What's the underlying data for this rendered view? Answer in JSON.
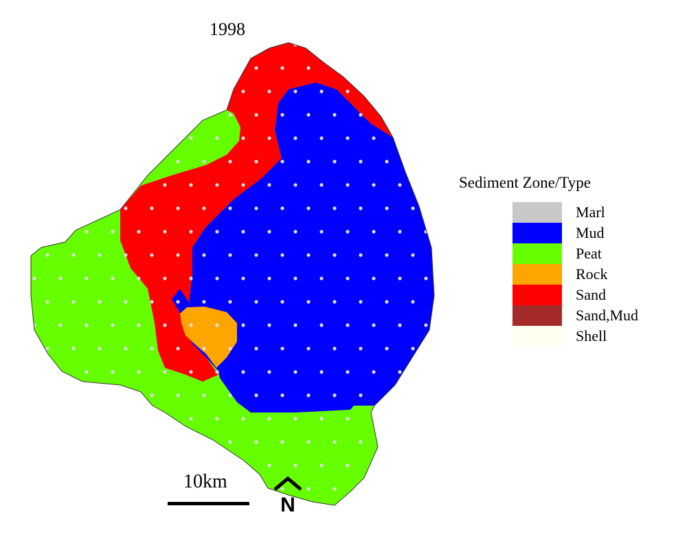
{
  "map": {
    "title": "1998",
    "legend_title": "Sediment Zone/Type",
    "legend": [
      {
        "label": "Marl",
        "color": "#c8c8c8"
      },
      {
        "label": "Mud",
        "color": "#0000ff"
      },
      {
        "label": "Peat",
        "color": "#66ff00"
      },
      {
        "label": "Rock",
        "color": "#ffa500"
      },
      {
        "label": "Sand",
        "color": "#ff0000"
      },
      {
        "label": "Sand,Mud",
        "color": "#a52a2a"
      },
      {
        "label": "Shell",
        "color": "#fffff0"
      }
    ],
    "scale_label": "10km",
    "north_label": "N"
  }
}
